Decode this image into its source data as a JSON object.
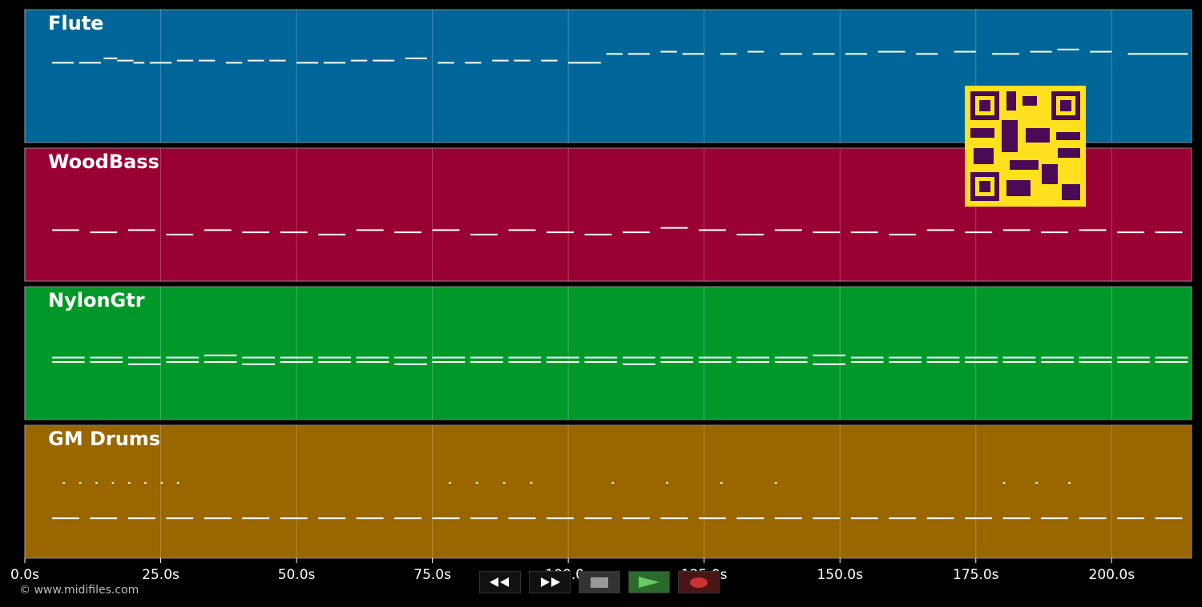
{
  "chart_data": {
    "type": "piano-roll",
    "xlim": [
      0,
      214.7
    ],
    "xticks": [
      {
        "value": 0,
        "label": "0.0s"
      },
      {
        "value": 25,
        "label": "25.0s"
      },
      {
        "value": 50,
        "label": "50.0s"
      },
      {
        "value": 75,
        "label": "75.0s"
      },
      {
        "value": 100,
        "label": "100.0s"
      },
      {
        "value": 125,
        "label": "125.0s"
      },
      {
        "value": 150,
        "label": "150.0s"
      },
      {
        "value": 175,
        "label": "175.0s"
      },
      {
        "value": 200,
        "label": "200.0s"
      }
    ],
    "grid": true,
    "tracks": [
      {
        "name": "Flute",
        "color": "#006699",
        "ylim": [
          40,
          100
        ],
        "notes": {
          "start": [
            5,
            10,
            14.5,
            17,
            20,
            23,
            28,
            32,
            37,
            41,
            45,
            50,
            55,
            60,
            64,
            70,
            76,
            81,
            86,
            90,
            95,
            100,
            107,
            111,
            117,
            121,
            128,
            133,
            139,
            145,
            151,
            157,
            164,
            171,
            178,
            185,
            190,
            196,
            203,
            208
          ],
          "end": [
            9,
            14,
            17,
            20,
            22,
            27,
            31,
            35,
            40,
            44,
            48,
            54,
            59,
            63,
            68,
            74,
            79,
            84,
            89,
            93,
            98,
            106,
            110,
            115,
            120,
            125,
            131,
            136,
            143,
            149,
            155,
            162,
            168,
            175,
            183,
            189,
            194,
            200,
            208,
            214
          ],
          "pitch": [
            76,
            76,
            78,
            77,
            76,
            76,
            77,
            77,
            76,
            77,
            77,
            76,
            76,
            77,
            77,
            78,
            76,
            76,
            77,
            77,
            77,
            76,
            80,
            80,
            81,
            80,
            80,
            81,
            80,
            80,
            80,
            81,
            80,
            81,
            80,
            81,
            82,
            81,
            80,
            80
          ]
        }
      },
      {
        "name": "WoodBass",
        "color": "#990033",
        "ylim": [
          40,
          100
        ],
        "notes": {
          "start": [
            5,
            12,
            19,
            26,
            33,
            40,
            47,
            54,
            61,
            68,
            75,
            82,
            89,
            96,
            103,
            110,
            117,
            124,
            131,
            138,
            145,
            152,
            159,
            166,
            173,
            180,
            187,
            194,
            201,
            208
          ],
          "end": [
            10,
            17,
            24,
            31,
            38,
            45,
            52,
            59,
            66,
            73,
            80,
            87,
            94,
            101,
            108,
            115,
            122,
            129,
            136,
            143,
            150,
            157,
            164,
            171,
            178,
            185,
            192,
            199,
            206,
            213
          ],
          "pitch": [
            63,
            62,
            63,
            61,
            63,
            62,
            62,
            61,
            63,
            62,
            63,
            61,
            63,
            62,
            61,
            62,
            64,
            63,
            61,
            63,
            62,
            62,
            61,
            63,
            62,
            63,
            62,
            63,
            62,
            62
          ]
        }
      },
      {
        "name": "NylonGtr",
        "color": "#009929",
        "ylim": [
          40,
          100
        ],
        "notes": {
          "start": [
            5,
            12,
            19,
            26,
            33,
            40,
            47,
            54,
            61,
            68,
            75,
            82,
            89,
            96,
            103,
            110,
            117,
            124,
            131,
            138,
            145,
            152,
            159,
            166,
            173,
            180,
            187,
            194,
            201,
            208,
            5,
            12,
            19,
            26,
            33,
            40,
            47,
            54,
            61,
            68,
            75,
            82,
            89,
            96,
            103,
            110,
            117,
            124,
            131,
            138,
            145,
            152,
            159,
            166,
            173,
            180,
            187,
            194,
            201,
            208
          ],
          "end": [
            11,
            18,
            25,
            32,
            39,
            46,
            53,
            60,
            67,
            74,
            81,
            88,
            95,
            102,
            109,
            116,
            123,
            130,
            137,
            144,
            151,
            158,
            165,
            172,
            179,
            186,
            193,
            200,
            207,
            214,
            11,
            18,
            25,
            32,
            39,
            46,
            53,
            60,
            67,
            74,
            81,
            88,
            95,
            102,
            109,
            116,
            123,
            130,
            137,
            144,
            151,
            158,
            165,
            172,
            179,
            186,
            193,
            200,
            207,
            214
          ],
          "pitch": [
            68,
            68,
            68,
            68,
            69,
            68,
            68,
            68,
            68,
            68,
            68,
            68,
            68,
            68,
            68,
            68,
            68,
            68,
            68,
            68,
            69,
            68,
            68,
            68,
            68,
            68,
            68,
            68,
            68,
            68,
            66,
            66,
            65,
            66,
            66,
            65,
            66,
            66,
            66,
            65,
            66,
            66,
            66,
            66,
            66,
            65,
            66,
            66,
            66,
            66,
            65,
            66,
            66,
            66,
            66,
            66,
            66,
            66,
            66,
            66
          ]
        }
      },
      {
        "name": "GM Drums",
        "color": "#996600",
        "ylim": [
          40,
          100
        ],
        "notes": {
          "start": [
            5,
            12,
            19,
            26,
            33,
            40,
            47,
            54,
            61,
            68,
            75,
            82,
            89,
            96,
            103,
            110,
            117,
            124,
            131,
            138,
            145,
            152,
            159,
            166,
            173,
            180,
            187,
            194,
            201,
            208,
            7,
            10,
            13,
            16,
            19,
            22,
            25,
            28,
            78,
            83,
            88,
            93,
            108,
            118,
            128,
            138,
            180,
            186,
            192
          ],
          "end": [
            10,
            17,
            24,
            31,
            38,
            45,
            52,
            59,
            66,
            73,
            80,
            87,
            94,
            101,
            108,
            115,
            122,
            129,
            136,
            143,
            150,
            157,
            164,
            171,
            178,
            185,
            192,
            199,
            206,
            213,
            7.4,
            10.4,
            13.4,
            16.4,
            19.4,
            22.4,
            25.4,
            28.4,
            78.4,
            83.4,
            88.4,
            93.4,
            108.4,
            118.4,
            128.4,
            138.4,
            180.4,
            186.4,
            192.4
          ],
          "pitch": [
            58,
            58,
            58,
            58,
            58,
            58,
            58,
            58,
            58,
            58,
            58,
            58,
            58,
            58,
            58,
            58,
            58,
            58,
            58,
            58,
            58,
            58,
            58,
            58,
            58,
            58,
            58,
            58,
            58,
            58,
            74,
            74,
            74,
            74,
            74,
            74,
            74,
            74,
            74,
            74,
            74,
            74,
            74,
            74,
            74,
            74,
            74,
            74,
            74
          ]
        }
      }
    ]
  },
  "footer": "© www.midifiles.com"
}
